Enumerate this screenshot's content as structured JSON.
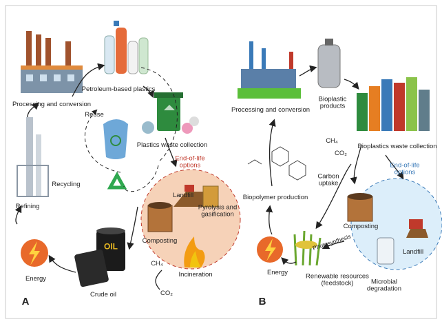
{
  "panel_a": {
    "label": "A",
    "processing": "Processing and conversion",
    "petroleum_plastics": "Petroleum-based plastics",
    "reuse": "Reuse",
    "waste_collection": "Plastics waste collection",
    "recycling": "Recycling",
    "refining": "Refining",
    "end_of_life_title": "End-of-life options",
    "landfill": "Landfill",
    "pyrolysis": "Pyrolysis and gasification",
    "composting": "Composting",
    "incineration": "Incineration",
    "energy": "Energy",
    "crude_oil": "Crude oil",
    "barrel_text": "OIL",
    "ch4": "CH₄",
    "co2": "CO₂"
  },
  "panel_b": {
    "label": "B",
    "processing": "Processing and conversion",
    "bioplastic_products": "Bioplastic products",
    "waste_collection": "Bioplastics waste collection",
    "ch4": "CH₄",
    "co2": "CO₂",
    "carbon_uptake": "Carbon uptake",
    "biopolymer_production": "Biopolymer production",
    "end_of_life_title": "End-of-life options",
    "composting": "Composting",
    "photosynthesis": "Photosynthesis",
    "landfill": "Landfill",
    "energy": "Energy",
    "renewable_resources": "Renewable resources (feedstock)",
    "microbial_degradation": "Microbial degradation"
  }
}
